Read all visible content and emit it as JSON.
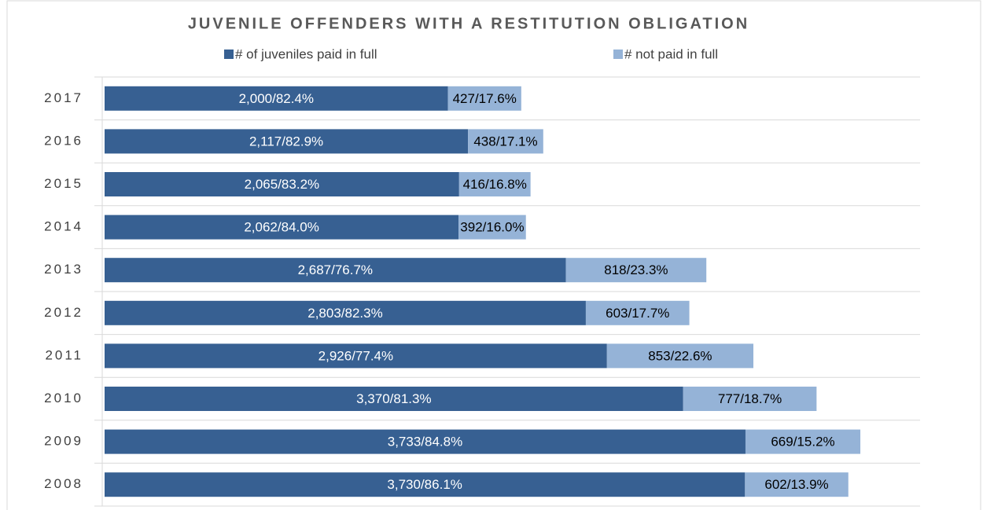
{
  "chart_data": {
    "type": "stacked-hbar",
    "title": "JUVENILE OFFENDERS WITH A RESTITUTION OBLIGATION",
    "categories": [
      "2017",
      "2016",
      "2015",
      "2014",
      "2013",
      "2012",
      "2011",
      "2010",
      "2009",
      "2008"
    ],
    "series": [
      {
        "name": "# of juveniles paid in full",
        "color": "#376092",
        "values": [
          2000,
          2117,
          2065,
          2062,
          2687,
          2803,
          2926,
          3370,
          3733,
          3730
        ],
        "value_labels": [
          "2,000/82.4%",
          "2,117/82.9%",
          "2,065/83.2%",
          "2,062/84.0%",
          "2,687/76.7%",
          "2,803/82.3%",
          "2,926/77.4%",
          "3,370/81.3%",
          "3,733/84.8%",
          "3,730/86.1%"
        ]
      },
      {
        "name": "# not paid in full",
        "color": "#95b3d7",
        "values": [
          427,
          438,
          416,
          392,
          818,
          603,
          853,
          777,
          669,
          602
        ],
        "value_labels": [
          "427/17.6%",
          "438/17.1%",
          "416/16.8%",
          "392/16.0%",
          "818/23.3%",
          "603/17.7%",
          "853/22.6%",
          "777/18.7%",
          "669/15.2%",
          "602/13.9%"
        ]
      }
    ],
    "xlim": [
      0,
      4750
    ]
  }
}
